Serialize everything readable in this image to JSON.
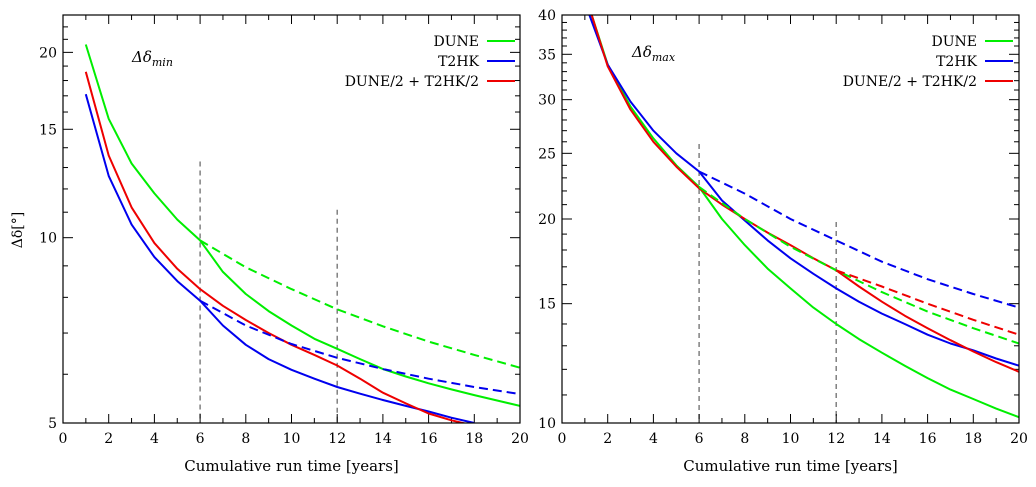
{
  "chart_data": [
    {
      "type": "line",
      "annotation": "Δδ",
      "annotation_sub": "min",
      "xlabel": "Cumulative run time [years]",
      "ylabel": "Δδ[°]",
      "xlim": [
        0,
        20
      ],
      "ylim": [
        5,
        23
      ],
      "yscale": "log",
      "xticks": [
        0,
        2,
        4,
        6,
        8,
        10,
        12,
        14,
        16,
        18,
        20
      ],
      "yticks": [
        5,
        10,
        15,
        20
      ],
      "vlines": [
        6,
        12
      ],
      "legend_position": "top-right",
      "series": [
        {
          "name": "DUNE",
          "color": "#00ee00",
          "style": "solid",
          "points": [
            [
              1,
              20.6
            ],
            [
              2,
              15.6
            ],
            [
              3,
              13.2
            ],
            [
              4,
              11.8
            ],
            [
              5,
              10.7
            ],
            [
              6,
              9.9
            ],
            [
              7,
              8.8
            ],
            [
              8,
              8.1
            ],
            [
              9,
              7.6
            ],
            [
              10,
              7.2
            ],
            [
              11,
              6.85
            ],
            [
              12,
              6.6
            ],
            [
              13,
              6.35
            ],
            [
              14,
              6.12
            ],
            [
              15,
              5.95
            ],
            [
              16,
              5.8
            ],
            [
              17,
              5.67
            ],
            [
              18,
              5.55
            ],
            [
              19,
              5.44
            ],
            [
              20,
              5.33
            ]
          ]
        },
        {
          "name": "T2HK",
          "color": "#0000ee",
          "style": "solid",
          "points": [
            [
              1,
              17.1
            ],
            [
              2,
              12.6
            ],
            [
              3,
              10.5
            ],
            [
              4,
              9.3
            ],
            [
              5,
              8.5
            ],
            [
              6,
              7.9
            ],
            [
              7,
              7.2
            ],
            [
              8,
              6.7
            ],
            [
              9,
              6.35
            ],
            [
              10,
              6.1
            ],
            [
              11,
              5.9
            ],
            [
              12,
              5.72
            ],
            [
              13,
              5.58
            ],
            [
              14,
              5.45
            ],
            [
              15,
              5.33
            ],
            [
              16,
              5.22
            ],
            [
              17,
              5.1
            ],
            [
              18,
              5.0
            ]
          ]
        },
        {
          "name": "DUNE/2 + T2HK/2",
          "color": "#ee0000",
          "style": "solid",
          "points": [
            [
              1,
              18.6
            ],
            [
              2,
              13.6
            ],
            [
              3,
              11.2
            ],
            [
              4,
              9.8
            ],
            [
              5,
              8.9
            ],
            [
              6,
              8.25
            ],
            [
              7,
              7.75
            ],
            [
              8,
              7.35
            ],
            [
              9,
              7.0
            ],
            [
              10,
              6.7
            ],
            [
              11,
              6.45
            ],
            [
              12,
              6.2
            ],
            [
              13,
              5.9
            ],
            [
              14,
              5.6
            ],
            [
              15,
              5.38
            ],
            [
              16,
              5.18
            ],
            [
              17,
              5.05
            ],
            [
              18,
              4.95
            ]
          ]
        },
        {
          "name": "",
          "color": "#00ee00",
          "style": "dashed",
          "points": [
            [
              6,
              9.9
            ],
            [
              8,
              8.95
            ],
            [
              10,
              8.25
            ],
            [
              12,
              7.65
            ],
            [
              14,
              7.18
            ],
            [
              16,
              6.78
            ],
            [
              18,
              6.45
            ],
            [
              20,
              6.15
            ]
          ]
        },
        {
          "name": "",
          "color": "#0000ee",
          "style": "dashed",
          "points": [
            [
              6,
              7.9
            ],
            [
              8,
              7.2
            ],
            [
              10,
              6.72
            ],
            [
              12,
              6.38
            ],
            [
              14,
              6.12
            ],
            [
              16,
              5.9
            ],
            [
              18,
              5.72
            ],
            [
              20,
              5.57
            ]
          ]
        }
      ]
    },
    {
      "type": "line",
      "annotation": "Δδ",
      "annotation_sub": "max",
      "xlabel": "Cumulative run time [years]",
      "ylabel": "",
      "xlim": [
        0,
        20
      ],
      "ylim": [
        10,
        40
      ],
      "yscale": "log",
      "xticks": [
        0,
        2,
        4,
        6,
        8,
        10,
        12,
        14,
        16,
        18,
        20
      ],
      "yticks": [
        10,
        15,
        20,
        25,
        30,
        35,
        40
      ],
      "vlines": [
        6,
        12
      ],
      "legend_position": "top-right",
      "series": [
        {
          "name": "DUNE",
          "color": "#00ee00",
          "style": "solid",
          "points": [
            [
              1.3,
              40
            ],
            [
              2,
              33.8
            ],
            [
              3,
              29.3
            ],
            [
              4,
              26.3
            ],
            [
              5,
              24.0
            ],
            [
              6,
              22.3
            ],
            [
              7,
              20.0
            ],
            [
              8,
              18.3
            ],
            [
              9,
              16.9
            ],
            [
              10,
              15.8
            ],
            [
              11,
              14.8
            ],
            [
              12,
              14.0
            ],
            [
              13,
              13.3
            ],
            [
              14,
              12.7
            ],
            [
              15,
              12.15
            ],
            [
              16,
              11.65
            ],
            [
              17,
              11.2
            ],
            [
              18,
              10.85
            ],
            [
              19,
              10.5
            ],
            [
              20,
              10.2
            ]
          ]
        },
        {
          "name": "T2HK",
          "color": "#0000ee",
          "style": "solid",
          "points": [
            [
              1.2,
              40
            ],
            [
              2,
              33.8
            ],
            [
              3,
              29.8
            ],
            [
              4,
              27.0
            ],
            [
              5,
              25.0
            ],
            [
              6,
              23.5
            ],
            [
              7,
              21.3
            ],
            [
              8,
              19.9
            ],
            [
              9,
              18.6
            ],
            [
              10,
              17.5
            ],
            [
              11,
              16.6
            ],
            [
              12,
              15.8
            ],
            [
              13,
              15.1
            ],
            [
              14,
              14.5
            ],
            [
              15,
              14.0
            ],
            [
              16,
              13.5
            ],
            [
              17,
              13.1
            ],
            [
              18,
              12.8
            ],
            [
              19,
              12.45
            ],
            [
              20,
              12.15
            ]
          ]
        },
        {
          "name": "DUNE/2 + T2HK/2",
          "color": "#ee0000",
          "style": "solid",
          "points": [
            [
              1.3,
              40
            ],
            [
              2,
              33.6
            ],
            [
              3,
              29.0
            ],
            [
              4,
              26.0
            ],
            [
              5,
              23.9
            ],
            [
              6,
              22.2
            ],
            [
              7,
              21.0
            ],
            [
              8,
              20.0
            ],
            [
              9,
              19.1
            ],
            [
              10,
              18.3
            ],
            [
              11,
              17.5
            ],
            [
              12,
              16.8
            ],
            [
              13,
              15.9
            ],
            [
              14,
              15.1
            ],
            [
              15,
              14.4
            ],
            [
              16,
              13.8
            ],
            [
              17,
              13.25
            ],
            [
              18,
              12.75
            ],
            [
              19,
              12.3
            ],
            [
              20,
              11.9
            ]
          ]
        },
        {
          "name": "",
          "color": "#00ee00",
          "style": "dashed",
          "points": [
            [
              6,
              22.3
            ],
            [
              8,
              20.0
            ],
            [
              10,
              18.2
            ],
            [
              12,
              16.8
            ],
            [
              14,
              15.6
            ],
            [
              16,
              14.6
            ],
            [
              18,
              13.8
            ],
            [
              20,
              13.1
            ]
          ]
        },
        {
          "name": "",
          "color": "#0000ee",
          "style": "dashed",
          "points": [
            [
              6,
              23.5
            ],
            [
              8,
              21.8
            ],
            [
              10,
              20.0
            ],
            [
              12,
              18.6
            ],
            [
              14,
              17.3
            ],
            [
              16,
              16.3
            ],
            [
              18,
              15.5
            ],
            [
              20,
              14.8
            ]
          ]
        },
        {
          "name": "",
          "color": "#ee0000",
          "style": "dashed",
          "points": [
            [
              12,
              16.8
            ],
            [
              14,
              15.9
            ],
            [
              16,
              15.0
            ],
            [
              18,
              14.2
            ],
            [
              20,
              13.5
            ]
          ]
        }
      ]
    }
  ]
}
